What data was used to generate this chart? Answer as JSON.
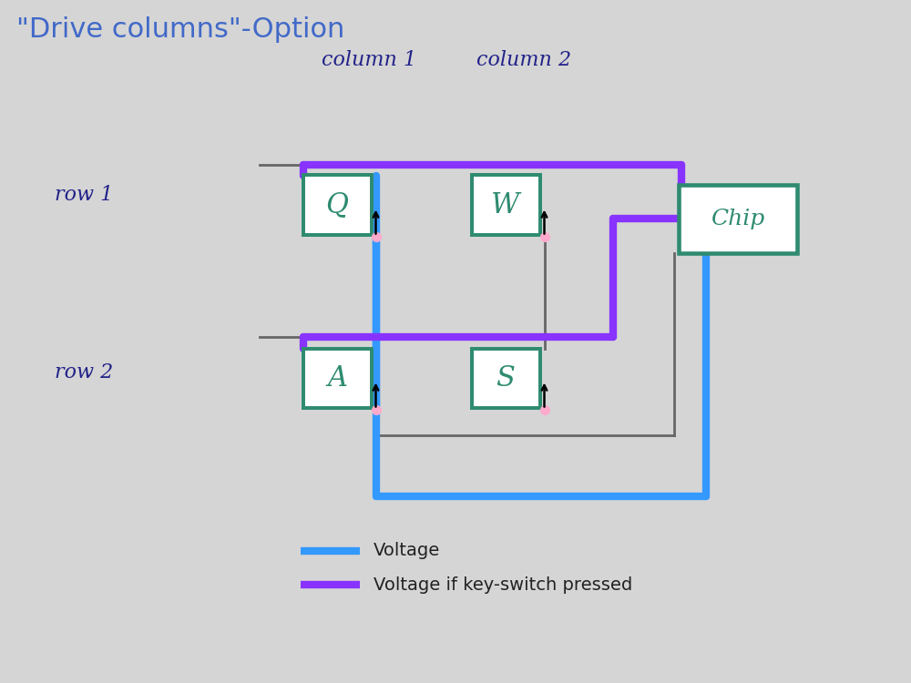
{
  "bg_color": "#d5d5d5",
  "title": "\"Drive columns\"-Option",
  "title_color": "#4169c8",
  "title_fontsize": 22,
  "switch_color": "#2e8b70",
  "switch_linewidth": 2.2,
  "blue_color": "#3399ff",
  "purple_color": "#8833ff",
  "wire_color": "#666666",
  "legend_blue": "Voltage",
  "legend_purple": "Voltage if key-switch pressed",
  "col1_label": "column 1",
  "col2_label": "column 2",
  "row1_label": "row 1",
  "row2_label": "row 2",
  "chip_label": "Chip",
  "xlim": [
    0,
    10
  ],
  "ylim": [
    0,
    7.5
  ]
}
